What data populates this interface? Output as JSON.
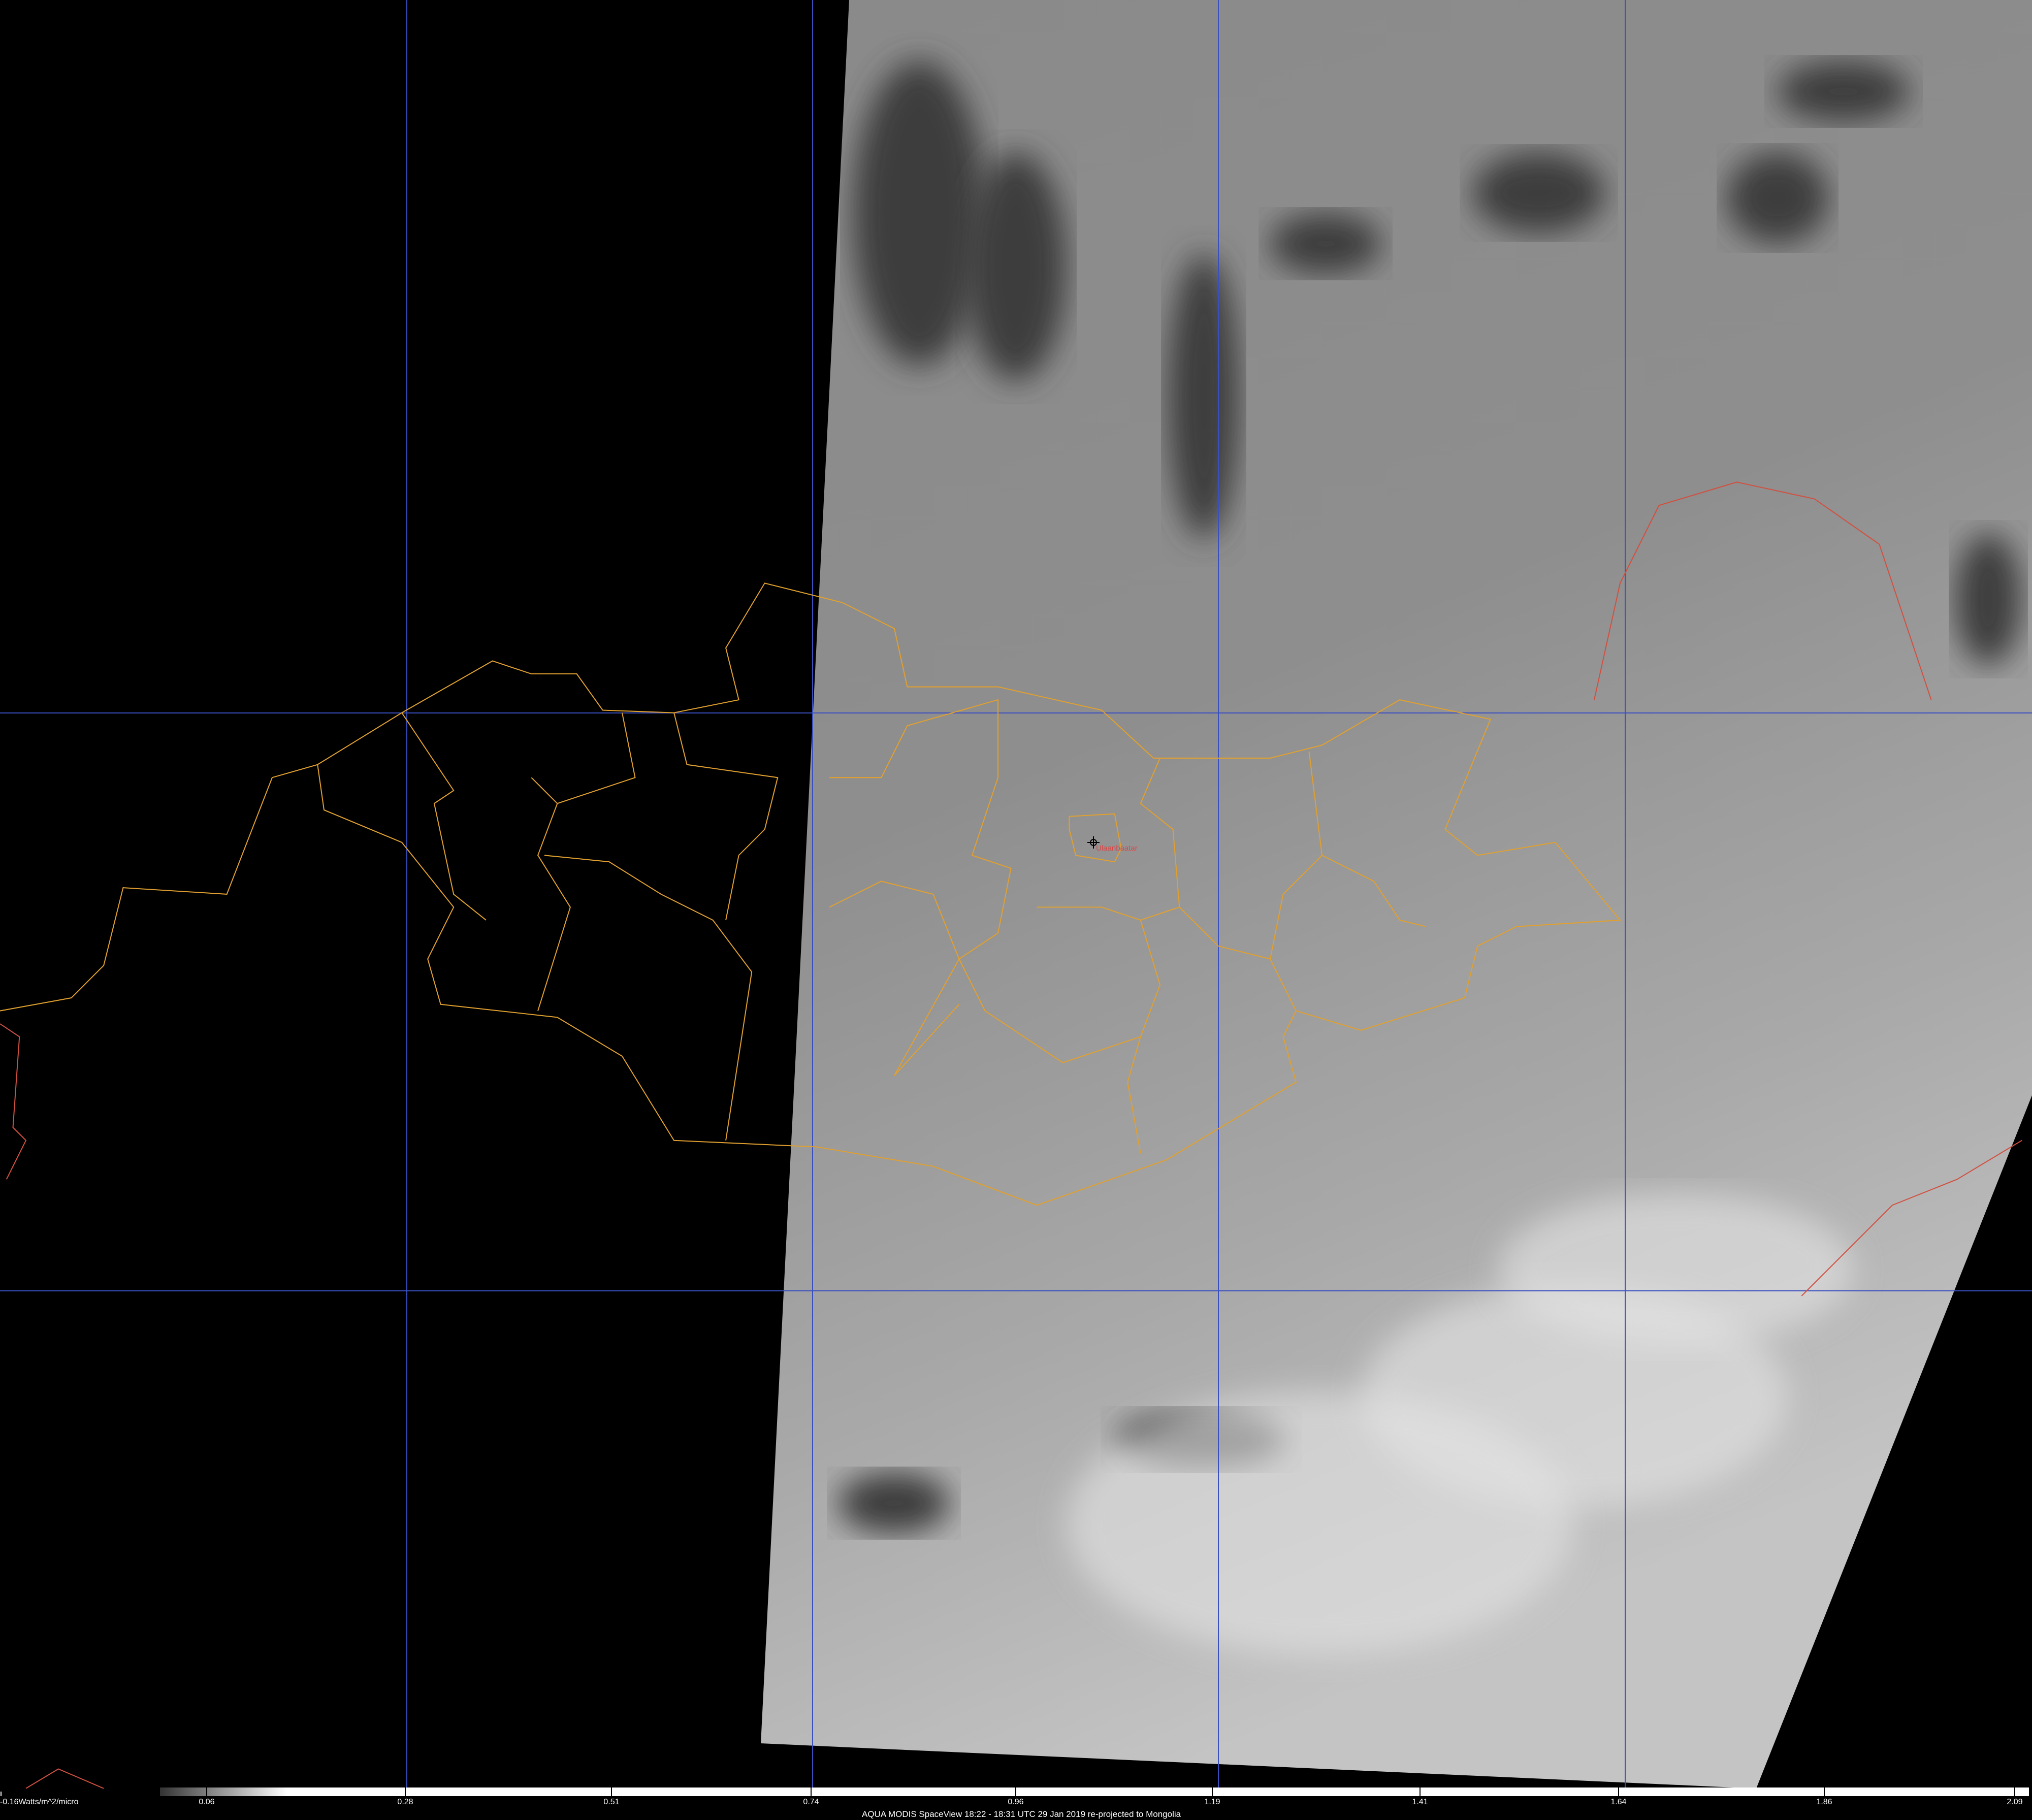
{
  "image": {
    "caption": "AQUA MODIS SpaceView 18:22 - 18:31 UTC 29 Jan 2019 re-projected to Mongolia",
    "city_label": "Ulaanbaatar",
    "colorbar": {
      "unit_label": "-0.16Watts/m^2/micro",
      "ticks": [
        "0.06",
        "0.28",
        "0.51",
        "0.74",
        "0.96",
        "1.19",
        "1.41",
        "1.64",
        "1.86",
        "2.09"
      ]
    },
    "colors": {
      "background": "#000000",
      "gridline": "#3a4fc0",
      "province_border": "#e0a030",
      "national_border": "#d05040",
      "city_label": "#d84848"
    },
    "icons": {
      "city_marker": "crosshair-icon"
    }
  }
}
